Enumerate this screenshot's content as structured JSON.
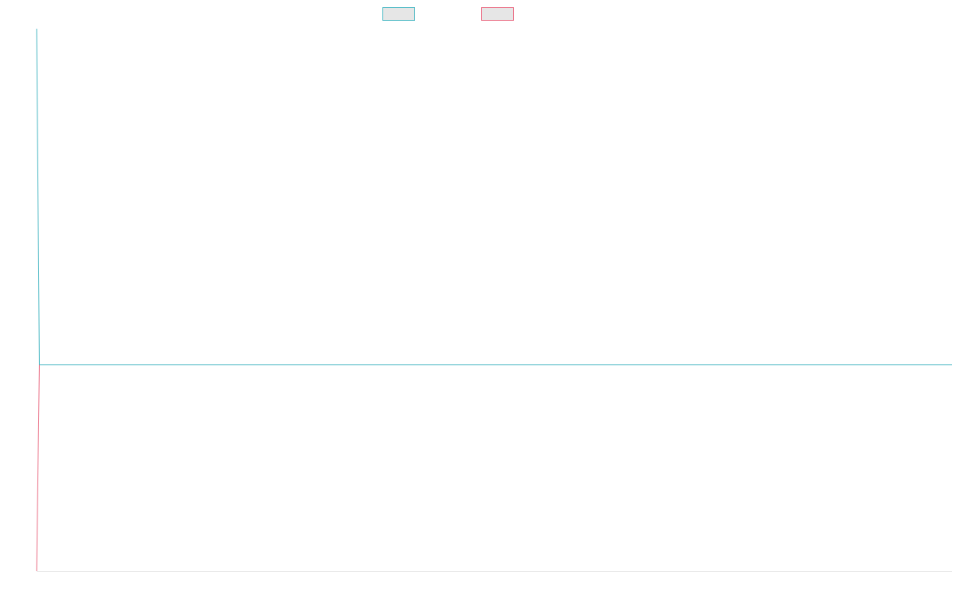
{
  "chart_data": {
    "type": "line",
    "title": "",
    "xlabel": "",
    "ylabel": "",
    "legend_position": "top",
    "grid": false,
    "x_range": [
      0,
      1
    ],
    "y_range": [
      0,
      1
    ],
    "series": [
      {
        "points": [
          [
            0,
            1
          ],
          [
            0.003,
            0.38
          ],
          [
            1,
            0.38
          ]
        ],
        "line_color": "#4bb8c4",
        "swatch_fill": "#e6e6e6"
      },
      {
        "points": [
          [
            0,
            0
          ],
          [
            0.003,
            0.38
          ]
        ],
        "line_color": "#ea6f86",
        "swatch_fill": "#e6e6e6"
      }
    ]
  }
}
